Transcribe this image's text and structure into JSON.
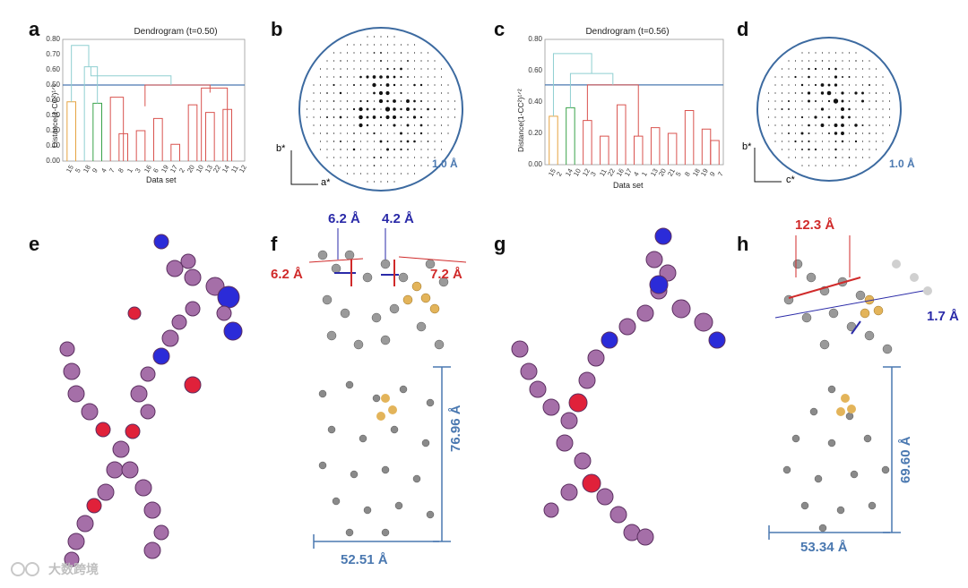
{
  "panels": [
    "a",
    "b",
    "c",
    "d",
    "e",
    "f",
    "g",
    "h"
  ],
  "dendrograms": [
    {
      "title": "Dendrogram (t=0.50)",
      "ylabel": "Distance(1-CC²)¹ᐟ²",
      "xlabel": "Data set",
      "yticks": [
        "0.80",
        "0.70",
        "0.60",
        "0.50",
        "0.40",
        "0.30",
        "0.20",
        "0.10",
        "0.00"
      ],
      "xticks": [
        "15",
        "5",
        "18",
        "9",
        "4",
        "7",
        "8",
        "1",
        "3",
        "16",
        "6",
        "19",
        "17",
        "2",
        "20",
        "10",
        "13",
        "22",
        "14",
        "11",
        "12"
      ],
      "threshold": 0.5
    },
    {
      "title": "Dendrogram (t=0.56)",
      "ylabel": "Distance(1-CC²)¹ᐟ²",
      "xlabel": "Data set",
      "yticks": [
        "0.80",
        "0.60",
        "0.40",
        "0.20",
        "0.00"
      ],
      "xticks": [
        "15",
        "2",
        "14",
        "10",
        "12",
        "3",
        "11",
        "22",
        "16",
        "17",
        "4",
        "1",
        "13",
        "20",
        "21",
        "5",
        "8",
        "18",
        "19",
        "9",
        "7"
      ],
      "threshold": 0.56
    }
  ],
  "diffraction": [
    {
      "resolution": "1.0 Å",
      "axis_v": "b*",
      "axis_h": "a*"
    },
    {
      "resolution": "1.0 Å",
      "axis_v": "b*",
      "axis_h": "c*"
    }
  ],
  "panel_f": {
    "m1": "6.2 Å",
    "m2": "4.2 Å",
    "m3": "6.2 Å",
    "m4": "7.2 Å",
    "height": "76.96 Å",
    "width": "52.51 Å"
  },
  "panel_h": {
    "m1": "12.3 Å",
    "m2": "1.7 Å",
    "height": "69.60 Å",
    "width": "53.34 Å"
  },
  "watermark": "大数跨境",
  "colors": {
    "threshold": "#4a78b0",
    "red": "#d9534f",
    "green": "#3aa34a",
    "orange": "#e6a341",
    "teal": "#8fcfd1",
    "molecule": "#a56fa8",
    "oxygen": "#e0213a",
    "nitrogen": "#2b2bd8",
    "gold": "#e3b45a"
  }
}
